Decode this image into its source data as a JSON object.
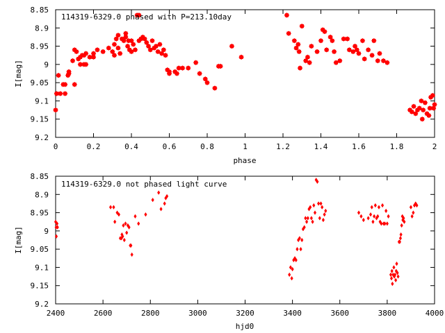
{
  "chart_data": [
    {
      "type": "scatter",
      "title": "114319-6329.0 phased with P=213.10day",
      "xlabel": "phase",
      "ylabel": "I[mag]",
      "xlim": [
        0,
        2
      ],
      "ylim": [
        9.2,
        8.85
      ],
      "y_inverted": true,
      "grid": false,
      "x_ticks": [
        "0",
        "0.2",
        "0.4",
        "0.6",
        "0.8",
        "1",
        "1.2",
        "1.4",
        "1.6",
        "1.8",
        "2"
      ],
      "y_ticks": [
        "8.85",
        "8.9",
        "8.95",
        "9",
        "9.05",
        "9.1",
        "9.15",
        "9.2"
      ],
      "series": [
        {
          "color": "#ff0000",
          "marker": "filled-star",
          "points": [
            [
              0.0,
              9.125
            ],
            [
              0.005,
              9.08
            ],
            [
              0.015,
              9.03
            ],
            [
              0.025,
              9.08
            ],
            [
              0.04,
              9.055
            ],
            [
              0.05,
              9.055
            ],
            [
              0.05,
              9.08
            ],
            [
              0.065,
              9.03
            ],
            [
              0.07,
              9.025
            ],
            [
              0.07,
              9.02
            ],
            [
              0.09,
              8.99
            ],
            [
              0.1,
              9.055
            ],
            [
              0.1,
              8.96
            ],
            [
              0.11,
              8.965
            ],
            [
              0.12,
              8.985
            ],
            [
              0.13,
              9.0
            ],
            [
              0.13,
              8.98
            ],
            [
              0.14,
              8.975
            ],
            [
              0.15,
              9.0
            ],
            [
              0.15,
              8.975
            ],
            [
              0.16,
              9.0
            ],
            [
              0.16,
              8.97
            ],
            [
              0.18,
              8.98
            ],
            [
              0.2,
              8.97
            ],
            [
              0.2,
              8.98
            ],
            [
              0.22,
              8.96
            ],
            [
              0.25,
              8.965
            ],
            [
              0.28,
              8.955
            ],
            [
              0.3,
              8.965
            ],
            [
              0.31,
              8.975
            ],
            [
              0.31,
              8.945
            ],
            [
              0.32,
              8.93
            ],
            [
              0.33,
              8.955
            ],
            [
              0.33,
              8.92
            ],
            [
              0.34,
              8.97
            ],
            [
              0.35,
              8.93
            ],
            [
              0.36,
              8.935
            ],
            [
              0.37,
              8.925
            ],
            [
              0.37,
              8.915
            ],
            [
              0.38,
              8.95
            ],
            [
              0.385,
              8.935
            ],
            [
              0.39,
              8.96
            ],
            [
              0.4,
              8.965
            ],
            [
              0.4,
              8.935
            ],
            [
              0.41,
              8.945
            ],
            [
              0.42,
              8.96
            ],
            [
              0.43,
              8.865
            ],
            [
              0.44,
              8.935
            ],
            [
              0.44,
              8.865
            ],
            [
              0.45,
              8.93
            ],
            [
              0.46,
              8.925
            ],
            [
              0.47,
              8.93
            ],
            [
              0.48,
              8.94
            ],
            [
              0.49,
              8.95
            ],
            [
              0.5,
              8.96
            ],
            [
              0.51,
              8.935
            ],
            [
              0.52,
              8.955
            ],
            [
              0.53,
              8.95
            ],
            [
              0.54,
              8.965
            ],
            [
              0.55,
              8.945
            ],
            [
              0.56,
              8.97
            ],
            [
              0.57,
              8.96
            ],
            [
              0.58,
              8.975
            ],
            [
              0.59,
              9.015
            ],
            [
              0.6,
              9.025
            ],
            [
              0.6,
              9.02
            ],
            [
              0.63,
              9.02
            ],
            [
              0.64,
              9.025
            ],
            [
              0.65,
              9.01
            ],
            [
              0.67,
              9.01
            ],
            [
              0.7,
              9.01
            ],
            [
              0.74,
              8.995
            ],
            [
              0.76,
              9.025
            ],
            [
              0.79,
              9.04
            ],
            [
              0.8,
              9.05
            ],
            [
              0.84,
              9.065
            ],
            [
              0.86,
              9.005
            ],
            [
              0.87,
              9.005
            ],
            [
              0.93,
              8.95
            ],
            [
              0.98,
              8.98
            ],
            [
              1.22,
              8.865
            ],
            [
              1.23,
              8.915
            ],
            [
              1.26,
              8.935
            ],
            [
              1.27,
              8.955
            ],
            [
              1.28,
              8.945
            ],
            [
              1.285,
              8.965
            ],
            [
              1.29,
              9.01
            ],
            [
              1.3,
              8.895
            ],
            [
              1.32,
              8.99
            ],
            [
              1.33,
              8.98
            ],
            [
              1.34,
              8.995
            ],
            [
              1.35,
              8.95
            ],
            [
              1.38,
              8.965
            ],
            [
              1.4,
              8.935
            ],
            [
              1.41,
              8.905
            ],
            [
              1.42,
              8.91
            ],
            [
              1.43,
              8.96
            ],
            [
              1.45,
              8.925
            ],
            [
              1.46,
              8.935
            ],
            [
              1.47,
              8.965
            ],
            [
              1.48,
              8.995
            ],
            [
              1.5,
              8.99
            ],
            [
              1.52,
              8.93
            ],
            [
              1.54,
              8.93
            ],
            [
              1.55,
              8.96
            ],
            [
              1.57,
              8.965
            ],
            [
              1.58,
              8.95
            ],
            [
              1.59,
              8.96
            ],
            [
              1.6,
              8.97
            ],
            [
              1.62,
              8.935
            ],
            [
              1.63,
              8.985
            ],
            [
              1.65,
              8.96
            ],
            [
              1.67,
              8.975
            ],
            [
              1.68,
              8.935
            ],
            [
              1.7,
              8.99
            ],
            [
              1.71,
              8.97
            ],
            [
              1.73,
              8.99
            ],
            [
              1.75,
              8.995
            ],
            [
              1.87,
              9.125
            ],
            [
              1.88,
              9.13
            ],
            [
              1.89,
              9.115
            ],
            [
              1.9,
              9.135
            ],
            [
              1.91,
              9.125
            ],
            [
              1.92,
              9.12
            ],
            [
              1.93,
              9.1
            ],
            [
              1.935,
              9.15
            ],
            [
              1.94,
              9.125
            ],
            [
              1.95,
              9.105
            ],
            [
              1.96,
              9.135
            ],
            [
              1.97,
              9.14
            ],
            [
              1.975,
              9.12
            ],
            [
              1.98,
              9.09
            ],
            [
              1.99,
              9.085
            ],
            [
              1.995,
              9.12
            ],
            [
              2.0,
              9.11
            ]
          ]
        }
      ]
    },
    {
      "type": "scatter",
      "title": "114319-6329.0 not phased light curve",
      "xlabel": "hjd0",
      "ylabel": "I[mag]",
      "xlim": [
        2400,
        4000
      ],
      "ylim": [
        9.2,
        8.85
      ],
      "y_inverted": true,
      "grid": false,
      "x_ticks": [
        "2400",
        "2600",
        "2800",
        "3000",
        "3200",
        "3400",
        "3600",
        "3800",
        "4000"
      ],
      "y_ticks": [
        "8.85",
        "8.9",
        "8.95",
        "9",
        "9.05",
        "9.1",
        "9.15",
        "9.2"
      ],
      "series": [
        {
          "color": "#ff0000",
          "marker": "filled-diamond",
          "points": [
            [
              2400,
              8.975
            ],
            [
              2402,
              8.99
            ],
            [
              2403,
              9.015
            ],
            [
              2406,
              8.98
            ],
            [
              2408,
              8.99
            ],
            [
              2632,
              8.935
            ],
            [
              2645,
              8.935
            ],
            [
              2650,
              8.975
            ],
            [
              2660,
              8.95
            ],
            [
              2667,
              8.955
            ],
            [
              2673,
              9.02
            ],
            [
              2678,
              9.02
            ],
            [
              2680,
              9.01
            ],
            [
              2683,
              9.015
            ],
            [
              2686,
              8.985
            ],
            [
              2690,
              9.025
            ],
            [
              2695,
              8.98
            ],
            [
              2700,
              9.005
            ],
            [
              2705,
              8.985
            ],
            [
              2710,
              8.99
            ],
            [
              2715,
              9.04
            ],
            [
              2718,
              9.04
            ],
            [
              2722,
              9.065
            ],
            [
              2736,
              8.96
            ],
            [
              2750,
              8.98
            ],
            [
              2780,
              8.955
            ],
            [
              2810,
              8.915
            ],
            [
              2835,
              8.895
            ],
            [
              2845,
              8.94
            ],
            [
              2860,
              8.925
            ],
            [
              2865,
              8.91
            ],
            [
              2870,
              8.905
            ],
            [
              3387,
              9.12
            ],
            [
              3392,
              9.1
            ],
            [
              3397,
              9.13
            ],
            [
              3400,
              9.105
            ],
            [
              3405,
              9.08
            ],
            [
              3410,
              9.075
            ],
            [
              3415,
              9.08
            ],
            [
              3420,
              9.05
            ],
            [
              3425,
              9.025
            ],
            [
              3430,
              9.02
            ],
            [
              3435,
              9.05
            ],
            [
              3440,
              9.025
            ],
            [
              3445,
              8.995
            ],
            [
              3450,
              8.99
            ],
            [
              3455,
              8.965
            ],
            [
              3460,
              8.975
            ],
            [
              3465,
              8.965
            ],
            [
              3470,
              8.94
            ],
            [
              3475,
              8.935
            ],
            [
              3480,
              8.965
            ],
            [
              3485,
              8.975
            ],
            [
              3490,
              8.93
            ],
            [
              3495,
              8.95
            ],
            [
              3500,
              8.86
            ],
            [
              3505,
              8.865
            ],
            [
              3510,
              8.925
            ],
            [
              3515,
              8.965
            ],
            [
              3520,
              8.925
            ],
            [
              3525,
              8.935
            ],
            [
              3530,
              8.97
            ],
            [
              3535,
              8.955
            ],
            [
              3540,
              8.945
            ],
            [
              3680,
              8.95
            ],
            [
              3690,
              8.96
            ],
            [
              3700,
              8.97
            ],
            [
              3720,
              8.965
            ],
            [
              3730,
              8.955
            ],
            [
              3735,
              8.935
            ],
            [
              3740,
              8.975
            ],
            [
              3745,
              8.96
            ],
            [
              3750,
              8.93
            ],
            [
              3755,
              8.965
            ],
            [
              3760,
              8.96
            ],
            [
              3765,
              8.935
            ],
            [
              3770,
              8.975
            ],
            [
              3775,
              8.98
            ],
            [
              3780,
              8.93
            ],
            [
              3785,
              8.98
            ],
            [
              3790,
              8.98
            ],
            [
              3795,
              8.945
            ],
            [
              3800,
              8.98
            ],
            [
              3805,
              8.96
            ],
            [
              3815,
              9.12
            ],
            [
              3818,
              9.13
            ],
            [
              3820,
              9.11
            ],
            [
              3822,
              9.145
            ],
            [
              3825,
              9.12
            ],
            [
              3828,
              9.1
            ],
            [
              3830,
              9.125
            ],
            [
              3833,
              9.12
            ],
            [
              3836,
              9.135
            ],
            [
              3838,
              9.11
            ],
            [
              3840,
              9.09
            ],
            [
              3843,
              9.115
            ],
            [
              3846,
              9.125
            ],
            [
              3850,
              9.03
            ],
            [
              3853,
              9.03
            ],
            [
              3856,
              9.02
            ],
            [
              3858,
              9.01
            ],
            [
              3861,
              8.985
            ],
            [
              3864,
              8.96
            ],
            [
              3866,
              8.97
            ],
            [
              3869,
              8.965
            ],
            [
              3872,
              8.975
            ],
            [
              3900,
              8.935
            ],
            [
              3905,
              8.96
            ],
            [
              3910,
              8.95
            ],
            [
              3915,
              8.93
            ],
            [
              3920,
              8.925
            ],
            [
              3925,
              8.93
            ]
          ]
        }
      ]
    }
  ]
}
